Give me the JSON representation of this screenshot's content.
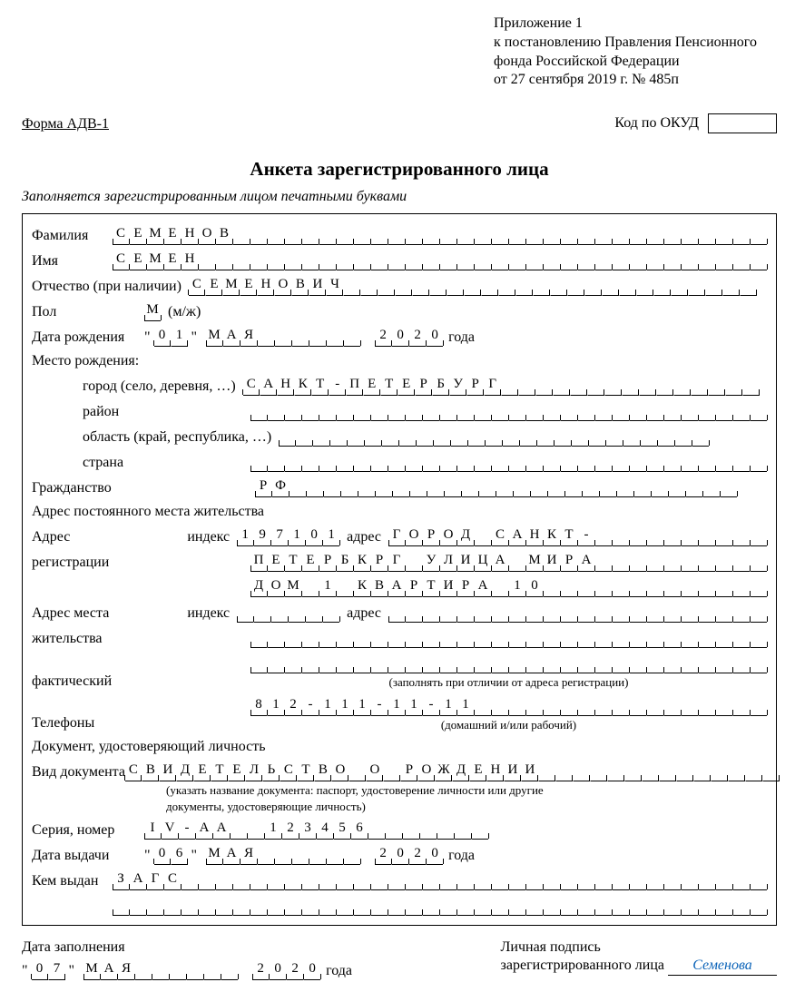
{
  "header": {
    "appendix": "Приложение 1",
    "line2": "к постановлению Правления Пенсионного",
    "line3": "фонда Российской Федерации",
    "line4": "от 27 сентября 2019 г. № 485п"
  },
  "form_code": "Форма АДВ-1",
  "okud_label": "Код по ОКУД",
  "title": "Анкета зарегистрированного лица",
  "subtitle": "Заполняется зарегистрированным лицом печатными буквами",
  "labels": {
    "surname": "Фамилия",
    "name": "Имя",
    "patronymic": "Отчество (при наличии)",
    "sex": "Пол",
    "sex_hint": "(м/ж)",
    "dob": "Дата рождения",
    "year_word": "года",
    "pob": "Место рождения:",
    "city": "город (село, деревня, …)",
    "district": "район",
    "region": "область (край, республика, …)",
    "country": "страна",
    "citizenship": "Гражданство",
    "perm_addr_title": "Адрес постоянного места жительства",
    "addr": "Адрес",
    "index": "индекс",
    "addr_word": "адрес",
    "registration": "регистрации",
    "fact_addr1": "Адрес места",
    "fact_addr2": "жительства",
    "fact_addr3": "фактический",
    "fact_note": "(заполнять при отличии от адреса регистрации)",
    "phones": "Телефоны",
    "phones_note": "(домашний и/или рабочий)",
    "doc_title": "Документ, удостоверяющий личность",
    "doc_type": "Вид документа",
    "doc_note1": "(указать название документа: паспорт, удостоверение личности или другие",
    "doc_note2": "документы, удостоверяющие личность)",
    "series": "Серия, номер",
    "issue_date": "Дата выдачи",
    "issued_by": "Кем выдан",
    "fill_date": "Дата заполнения",
    "signature1": "Личная подпись",
    "signature2": "зарегистрированного лица"
  },
  "values": {
    "surname": "СЕМЕНОВ",
    "name": "СЕМЕН",
    "patronymic": "СЕМЕНОВИЧ",
    "sex": "М",
    "dob_day": "01",
    "dob_month": "МАЯ",
    "dob_year": "2020",
    "city": "САНКТ-ПЕТЕРБУРГ",
    "citizenship": "РФ",
    "reg_index": "197101",
    "reg_addr1": "ГОРОД САНКТ-",
    "reg_addr2": "ПЕТЕРБКРГ УЛИЦА МИРА",
    "reg_addr3": "ДОМ 1 КВАРТИРА 10",
    "phone": "812-111-11-11",
    "doc_type": "СВИДЕТЕЛЬСТВО О РОЖДЕНИИ",
    "series": "IV-АА  123456",
    "issue_day": "06",
    "issue_month": "МАЯ",
    "issue_year": "2020",
    "issued_by": "ЗАГС",
    "fill_day": "07",
    "fill_month": "МАЯ",
    "fill_year": "2020",
    "signature": "Семенова"
  },
  "cell_counts": {
    "surname": 38,
    "name": 38,
    "patronymic": 33,
    "sex": 1,
    "day": 2,
    "month": 9,
    "year": 4,
    "city": 30,
    "district": 38,
    "region": 25,
    "country": 38,
    "citizenship": 28,
    "index": 6,
    "addr_short": 22,
    "addr_long": 30,
    "phone": 30,
    "doc_type": 38,
    "series": 20,
    "issued_by": 38,
    "issued_by2": 40
  },
  "colors": {
    "text": "#000000",
    "sig": "#0b63b8",
    "bg": "#ffffff"
  }
}
